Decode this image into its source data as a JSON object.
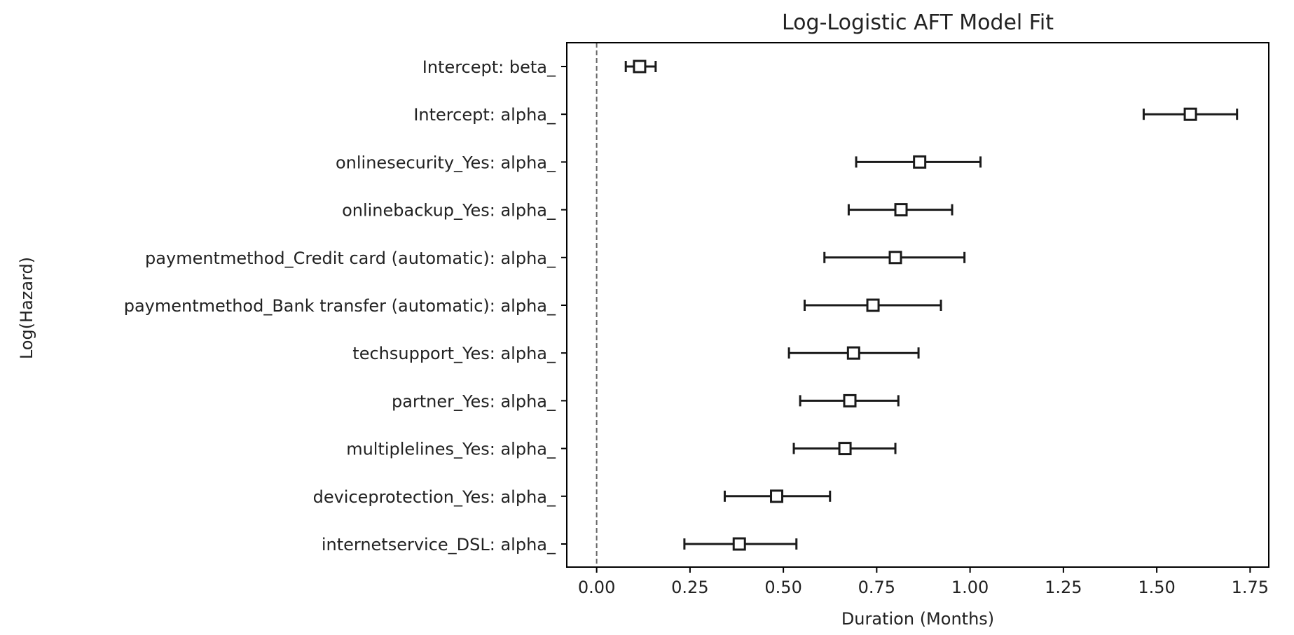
{
  "chart_data": {
    "type": "scatter",
    "title": "Log-Logistic AFT Model Fit",
    "xlabel": "Duration (Months)",
    "ylabel": "Log(Hazard)",
    "xlim": [
      -0.08,
      1.8
    ],
    "xticks": [
      0.0,
      0.25,
      0.5,
      0.75,
      1.0,
      1.25,
      1.5,
      1.75
    ],
    "xtick_labels": [
      "0.00",
      "0.25",
      "0.50",
      "0.75",
      "1.00",
      "1.25",
      "1.50",
      "1.75"
    ],
    "reference_line": {
      "x": 0.0,
      "style": "dashed"
    },
    "grid": false,
    "marker": "open-square",
    "series": [
      {
        "points": [
          {
            "label": "Intercept: beta_",
            "estimate": 0.115,
            "lower": 0.078,
            "upper": 0.158
          },
          {
            "label": "Intercept: alpha_",
            "estimate": 1.59,
            "lower": 1.465,
            "upper": 1.715
          },
          {
            "label": "onlinesecurity_Yes: alpha_",
            "estimate": 0.865,
            "lower": 0.695,
            "upper": 1.028
          },
          {
            "label": "onlinebackup_Yes: alpha_",
            "estimate": 0.815,
            "lower": 0.675,
            "upper": 0.952
          },
          {
            "label": "paymentmethod_Credit card (automatic): alpha_",
            "estimate": 0.8,
            "lower": 0.61,
            "upper": 0.985
          },
          {
            "label": "paymentmethod_Bank transfer (automatic): alpha_",
            "estimate": 0.74,
            "lower": 0.557,
            "upper": 0.922
          },
          {
            "label": "techsupport_Yes: alpha_",
            "estimate": 0.688,
            "lower": 0.515,
            "upper": 0.862
          },
          {
            "label": "partner_Yes: alpha_",
            "estimate": 0.678,
            "lower": 0.545,
            "upper": 0.808
          },
          {
            "label": "multiplelines_Yes: alpha_",
            "estimate": 0.665,
            "lower": 0.528,
            "upper": 0.8
          },
          {
            "label": "deviceprotection_Yes: alpha_",
            "estimate": 0.482,
            "lower": 0.343,
            "upper": 0.625
          },
          {
            "label": "internetservice_DSL: alpha_",
            "estimate": 0.382,
            "lower": 0.235,
            "upper": 0.535
          }
        ]
      }
    ]
  }
}
